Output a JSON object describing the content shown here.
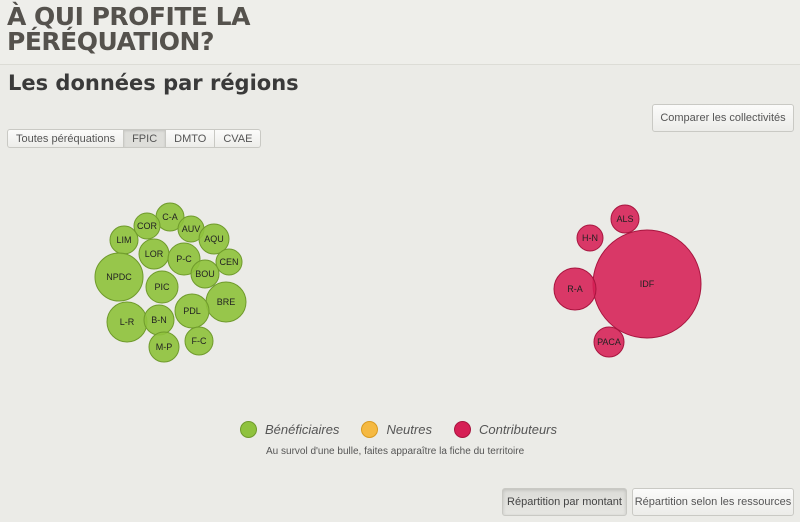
{
  "site": {
    "title_line1": "À QUI PROFITE LA",
    "title_line2": "PÉRÉQUATION?"
  },
  "page": {
    "title": "Les données par régions"
  },
  "buttons": {
    "compare": "Comparer les collectivités",
    "split_amount": "Répartition par montant",
    "split_resources": "Répartition selon les ressources"
  },
  "tabs": [
    {
      "label": "Toutes péréquations",
      "active": false
    },
    {
      "label": "FPIC",
      "active": true
    },
    {
      "label": "DMTO",
      "active": false
    },
    {
      "label": "CVAE",
      "active": false
    }
  ],
  "colors": {
    "beneficiaires": "#8fc23e",
    "neutres": "#f5b942",
    "contributeurs": "#d61f55"
  },
  "legend": {
    "beneficiaires": "Bénéficiaires",
    "neutres": "Neutres",
    "contributeurs": "Contributeurs"
  },
  "hint": "Au survol d'une bulle, faites apparaître la fiche du territoire",
  "regions": {
    "beneficiaires": [
      "C-A",
      "COR",
      "AUV",
      "LIM",
      "AQU",
      "LOR",
      "P-C",
      "CEN",
      "NPDC",
      "BOU",
      "PIC",
      "BRE",
      "PDL",
      "L-R",
      "B-N",
      "F-C",
      "M-P"
    ],
    "contributeurs": [
      "ALS",
      "H-N",
      "IDF",
      "R-A",
      "PACA"
    ]
  }
}
